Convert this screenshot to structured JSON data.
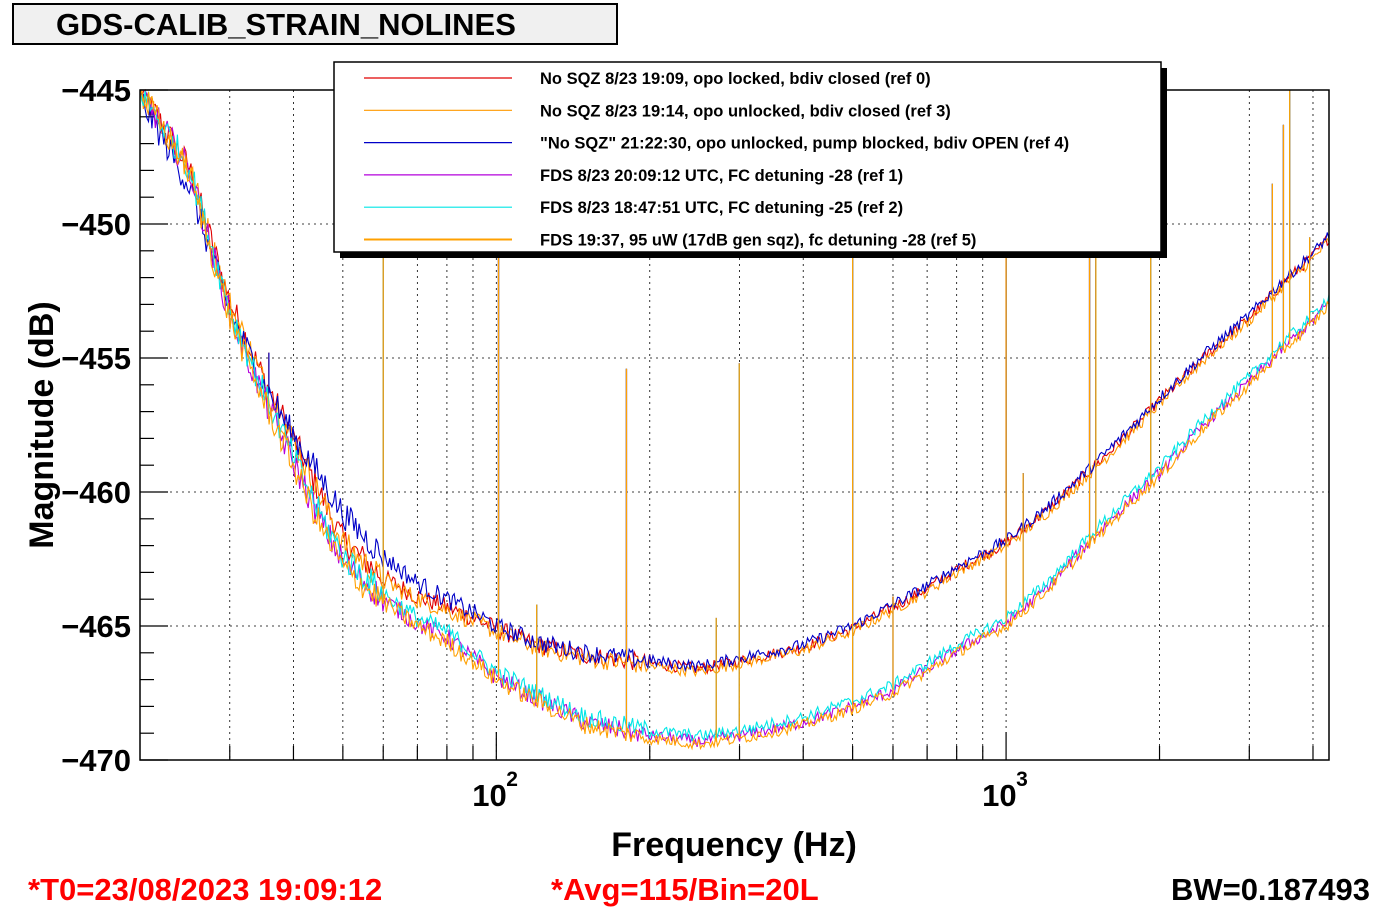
{
  "title": "GDS-CALIB_STRAIN_NOLINES",
  "footer": {
    "t0": "*T0=23/08/2023 19:09:12",
    "avg": "*Avg=115/Bin=20L",
    "bw": "BW=0.187493"
  },
  "chart_data": {
    "type": "line",
    "title": "GDS-CALIB_STRAIN_NOLINES",
    "xlabel": "Frequency (Hz)",
    "ylabel": "Magnitude (dB)",
    "x_scale": "log",
    "xlim": [
      20,
      4300
    ],
    "ylim": [
      -470,
      -445
    ],
    "x_tick_labels": [
      {
        "value": 100,
        "base": "10",
        "exp": "2"
      },
      {
        "value": 1000,
        "base": "10",
        "exp": "3"
      }
    ],
    "y_ticks": [
      -470,
      -465,
      -460,
      -455,
      -450,
      -445
    ],
    "y_tick_labels": [
      "−470",
      "−465",
      "−460",
      "−455",
      "−450",
      "−445"
    ],
    "grid": true,
    "legend_position": "top-right",
    "series": [
      {
        "name": "No SQZ 8/23 19:09, opo locked, bdiv closed (ref 0)",
        "color": "#e00000",
        "group": "nosqz",
        "x": [
          20,
          25,
          30,
          35,
          40,
          45,
          50,
          60,
          70,
          80,
          90,
          100,
          120,
          150,
          200,
          250,
          300,
          400,
          500,
          600,
          700,
          800,
          1000,
          1200,
          1500,
          1800,
          2000,
          2500,
          3000,
          3500,
          4000,
          4300
        ],
        "y": [
          -445.0,
          -447.9,
          -452.9,
          -455.8,
          -458.0,
          -460.0,
          -461.8,
          -463.2,
          -463.9,
          -464.3,
          -464.7,
          -465.1,
          -465.7,
          -466.1,
          -466.4,
          -466.6,
          -466.3,
          -465.8,
          -465.1,
          -464.3,
          -463.6,
          -462.9,
          -461.9,
          -460.7,
          -459.0,
          -457.5,
          -456.6,
          -454.8,
          -453.5,
          -452.2,
          -451.2,
          -450.5
        ]
      },
      {
        "name": "No SQZ 8/23 19:14, opo unlocked, bdiv closed (ref 3)",
        "color": "#ff9a00",
        "group": "nosqz",
        "x": [
          20,
          25,
          30,
          35,
          40,
          45,
          50,
          60,
          70,
          80,
          90,
          100,
          120,
          150,
          200,
          250,
          300,
          400,
          500,
          600,
          700,
          800,
          1000,
          1200,
          1500,
          1800,
          2000,
          2500,
          3000,
          3500,
          4000,
          4300
        ],
        "y": [
          -445.0,
          -447.9,
          -453.0,
          -455.9,
          -458.1,
          -460.1,
          -461.9,
          -463.3,
          -464.0,
          -464.4,
          -464.8,
          -465.2,
          -465.8,
          -466.2,
          -466.5,
          -466.7,
          -466.4,
          -465.9,
          -465.2,
          -464.4,
          -463.7,
          -463.0,
          -462.0,
          -460.8,
          -459.1,
          -457.6,
          -456.7,
          -454.9,
          -453.6,
          -452.3,
          -451.3,
          -450.6
        ]
      },
      {
        "name": "\"No SQZ\" 21:22:30, opo unlocked, pump blocked, bdiv OPEN (ref 4)",
        "color": "#0000c8",
        "group": "nosqz",
        "x": [
          20,
          25,
          30,
          35,
          40,
          45,
          50,
          60,
          70,
          80,
          90,
          100,
          120,
          150,
          200,
          250,
          300,
          400,
          500,
          600,
          700,
          800,
          1000,
          1200,
          1500,
          1800,
          2000,
          2500,
          3000,
          3500,
          4000,
          4300
        ],
        "y": [
          -445.3,
          -448.6,
          -453.3,
          -456.0,
          -457.9,
          -459.4,
          -460.8,
          -462.4,
          -463.4,
          -464.0,
          -464.5,
          -465.0,
          -465.6,
          -466.0,
          -466.3,
          -466.5,
          -466.2,
          -465.7,
          -465.0,
          -464.2,
          -463.5,
          -462.8,
          -461.8,
          -460.6,
          -458.9,
          -457.4,
          -456.5,
          -454.7,
          -453.4,
          -452.1,
          -451.1,
          -450.4
        ]
      },
      {
        "name": "FDS 8/23 20:09:12 UTC, FC detuning -28 (ref 1)",
        "color": "#b400dc",
        "group": "fds",
        "x": [
          20,
          25,
          30,
          35,
          40,
          45,
          50,
          60,
          70,
          80,
          90,
          100,
          120,
          150,
          200,
          250,
          300,
          400,
          500,
          600,
          700,
          800,
          1000,
          1200,
          1500,
          1800,
          2000,
          2500,
          3000,
          3500,
          4000,
          4300
        ],
        "y": [
          -445.0,
          -448.0,
          -453.4,
          -456.5,
          -458.9,
          -461.0,
          -462.6,
          -464.0,
          -464.9,
          -465.4,
          -466.2,
          -466.9,
          -467.7,
          -468.6,
          -469.1,
          -469.3,
          -469.1,
          -468.6,
          -468.0,
          -467.4,
          -466.6,
          -465.9,
          -464.9,
          -463.6,
          -461.6,
          -460.1,
          -459.3,
          -457.3,
          -455.9,
          -454.6,
          -453.6,
          -452.9
        ]
      },
      {
        "name": "FDS 8/23 18:47:51 UTC, FC detuning -25 (ref 2)",
        "color": "#00e6e6",
        "group": "fds",
        "x": [
          20,
          25,
          30,
          35,
          40,
          45,
          50,
          60,
          70,
          80,
          90,
          100,
          120,
          150,
          200,
          250,
          300,
          400,
          500,
          600,
          700,
          800,
          1000,
          1200,
          1500,
          1800,
          2000,
          2500,
          3000,
          3500,
          4000,
          4300
        ],
        "y": [
          -445.0,
          -447.9,
          -453.2,
          -456.3,
          -458.7,
          -460.8,
          -462.4,
          -463.8,
          -464.7,
          -465.2,
          -466.0,
          -466.7,
          -467.5,
          -468.4,
          -468.9,
          -469.1,
          -468.9,
          -468.4,
          -467.8,
          -467.2,
          -466.4,
          -465.7,
          -464.7,
          -463.4,
          -461.4,
          -459.9,
          -459.1,
          -457.1,
          -455.7,
          -454.4,
          -453.4,
          -452.7
        ]
      },
      {
        "name": "FDS 19:37, 95 uW (17dB gen sqz), fc detuning -28 (ref 5)",
        "color": "#ffa000",
        "group": "fds",
        "x": [
          20,
          25,
          30,
          35,
          40,
          45,
          50,
          60,
          70,
          80,
          90,
          100,
          120,
          150,
          200,
          250,
          300,
          400,
          500,
          600,
          700,
          800,
          1000,
          1200,
          1500,
          1800,
          2000,
          2500,
          3000,
          3500,
          4000,
          4300
        ],
        "y": [
          -445.0,
          -448.1,
          -453.5,
          -456.6,
          -459.0,
          -461.2,
          -462.8,
          -464.1,
          -465.0,
          -465.6,
          -466.3,
          -467.0,
          -467.8,
          -468.7,
          -469.2,
          -469.4,
          -469.2,
          -468.7,
          -468.1,
          -467.5,
          -466.7,
          -466.0,
          -465.0,
          -463.7,
          -461.7,
          -460.2,
          -459.4,
          -457.4,
          -456.0,
          -454.7,
          -453.7,
          -453.0
        ]
      }
    ],
    "lines": [
      {
        "f": 35.8,
        "peak": -454.8,
        "groups": "nosqz",
        "color": "#0000c8"
      },
      {
        "f": 60,
        "peak": -445,
        "groups": "all",
        "color": "#e00000"
      },
      {
        "f": 101,
        "peak": -449.5,
        "groups": "all",
        "color": "#00e6e6"
      },
      {
        "f": 120,
        "peak": -464.2,
        "groups": "all",
        "color": "#e00000"
      },
      {
        "f": 180,
        "peak": -455.4,
        "groups": "all",
        "color": "#e00000"
      },
      {
        "f": 270,
        "peak": -464.7,
        "groups": "all",
        "color": "#b400dc"
      },
      {
        "f": 299.6,
        "peak": -455.2,
        "groups": "all",
        "color": "#ffa000"
      },
      {
        "f": 500,
        "peak": -445,
        "groups": "all",
        "color": "#e00000"
      },
      {
        "f": 600,
        "peak": -463.9,
        "groups": "all",
        "color": "#b400dc"
      },
      {
        "f": 1000,
        "peak": -445,
        "groups": "all",
        "color": "#e00000"
      },
      {
        "f": 1080,
        "peak": -459.3,
        "groups": "all",
        "color": "#e00000"
      },
      {
        "f": 1458,
        "peak": -445,
        "groups": "all",
        "color": "#e00000"
      },
      {
        "f": 1500,
        "peak": -447,
        "groups": "all",
        "color": "#e00000"
      },
      {
        "f": 1922,
        "peak": -447,
        "groups": "all",
        "color": "#e00000"
      },
      {
        "f": 3330,
        "peak": -448.5,
        "groups": "all",
        "color": "#b400dc"
      },
      {
        "f": 3500,
        "peak": -446.3,
        "groups": "all",
        "color": "#e00000"
      },
      {
        "f": 3600,
        "peak": -445,
        "groups": "all",
        "color": "#ff9a00"
      },
      {
        "f": 3940,
        "peak": -450.5,
        "groups": "all",
        "color": "#b400dc"
      }
    ]
  }
}
